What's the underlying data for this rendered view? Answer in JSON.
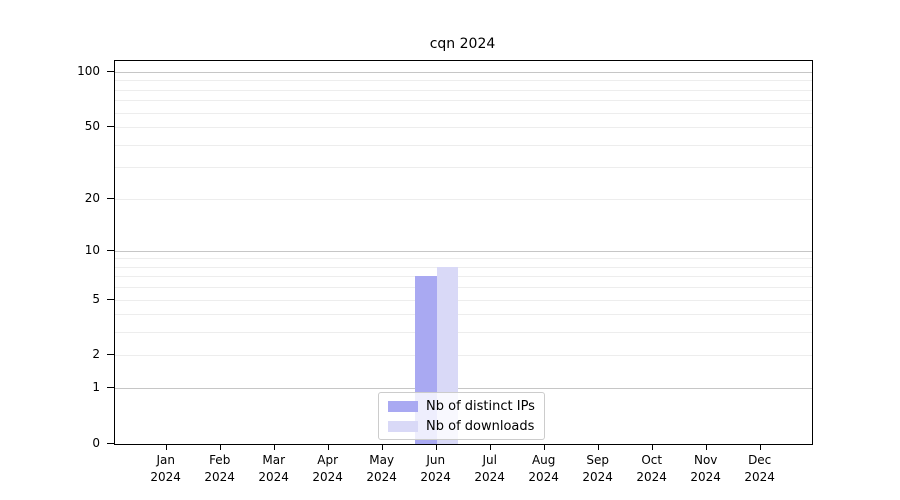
{
  "chart_data": {
    "type": "bar",
    "title": "cqn 2024",
    "year_label": "2024",
    "categories": [
      "Jan",
      "Feb",
      "Mar",
      "Apr",
      "May",
      "Jun",
      "Jul",
      "Aug",
      "Sep",
      "Oct",
      "Nov",
      "Dec"
    ],
    "series": [
      {
        "name": "Nb of distinct IPs",
        "color": "#a9a9f2",
        "values": [
          0,
          0,
          0,
          0,
          0,
          7,
          0,
          0,
          0,
          0,
          0,
          0
        ]
      },
      {
        "name": "Nb of downloads",
        "color": "#d9d9f7",
        "values": [
          0,
          0,
          0,
          0,
          0,
          8,
          0,
          0,
          0,
          0,
          0,
          0
        ]
      }
    ],
    "yscale": "log1p",
    "ylim": [
      0,
      115
    ],
    "ytick_labels": [
      0,
      1,
      2,
      5,
      10,
      20,
      50,
      100
    ],
    "ygrid_major": [
      1,
      10,
      100
    ],
    "ygrid_minor": [
      2,
      3,
      4,
      5,
      6,
      7,
      8,
      9,
      20,
      30,
      40,
      50,
      60,
      70,
      80,
      90
    ],
    "grid": true,
    "legend_position": "lower center",
    "xlabel": "",
    "ylabel": ""
  }
}
